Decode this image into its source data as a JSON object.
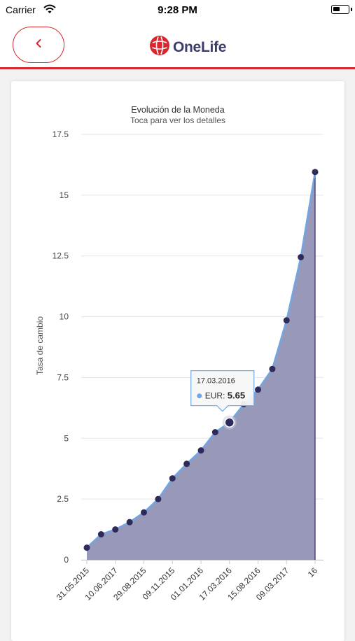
{
  "status_bar": {
    "carrier": "Carrier",
    "time": "9:28 PM"
  },
  "header": {
    "brand": "OneLife"
  },
  "chart_data": {
    "type": "area",
    "title": "Evolución de la Moneda",
    "subtitle": "Toca para ver los detalles",
    "ylabel": "Tasa de cambio",
    "ylim": [
      0,
      17.5
    ],
    "yticks": [
      0,
      2.5,
      5,
      7.5,
      10,
      12.5,
      15,
      17.5
    ],
    "ytick_labels": [
      "0",
      "2.5",
      "5",
      "7.5",
      "10",
      "12.5",
      "15",
      "17.5"
    ],
    "xtick_labels": [
      "31.05.2015",
      "10.06.2017",
      "29.08.2015",
      "09.11.2015",
      "01.01.2016",
      "17.03.2016",
      "15.08.2016",
      "09.03.2017",
      "16"
    ],
    "series": [
      {
        "values": [
          0.5,
          1.05,
          1.25,
          1.55,
          1.95,
          2.5,
          3.35,
          3.95,
          4.5,
          5.25,
          5.65,
          6.4,
          7.0,
          7.85,
          9.85,
          12.45,
          15.95
        ]
      }
    ],
    "colors": {
      "area": "#9898b8",
      "line": "#6fa6e4",
      "marker": "#2f2a5c"
    },
    "tooltip": {
      "date": "17.03.2016",
      "series": "EUR",
      "value": "5.65",
      "index": 10
    }
  }
}
